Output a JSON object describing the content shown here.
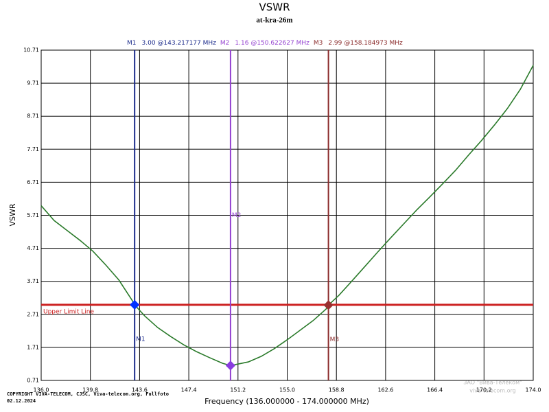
{
  "chart_data": {
    "type": "line",
    "title": "VSWR",
    "subtitle": "at-kra-26m",
    "x_label": "Frequency (136.000000 - 174.000000 MHz)",
    "y_label": "VSWR",
    "xlim": [
      136,
      174
    ],
    "ylim": [
      0.71,
      10.71
    ],
    "xticks": [
      {
        "value": 136,
        "label": "136.0"
      },
      139.8,
      143.6,
      147.4,
      151.2,
      {
        "value": 155,
        "label": "155.0"
      },
      158.8,
      162.6,
      166.4,
      170.2,
      {
        "value": 174,
        "label": "174.0"
      }
    ],
    "yticks": [
      0.71,
      1.71,
      2.71,
      3.71,
      4.71,
      5.71,
      6.71,
      7.71,
      8.71,
      9.71,
      10.71
    ],
    "grid": true,
    "x": [
      136,
      137,
      138,
      139,
      140,
      141,
      142,
      143,
      143.217177,
      144,
      145,
      146,
      147,
      148,
      149,
      150,
      150.622627,
      151,
      152,
      153,
      154,
      155,
      156,
      157,
      158,
      158.184973,
      159,
      160,
      161,
      162,
      163,
      164,
      165,
      166,
      167,
      168,
      169,
      170,
      171,
      172,
      173,
      174
    ],
    "series": [
      {
        "color": "#2a7a2a",
        "values": [
          6.0,
          5.55,
          5.25,
          4.95,
          4.62,
          4.2,
          3.75,
          3.15,
          3.0,
          2.66,
          2.31,
          2.04,
          1.79,
          1.58,
          1.4,
          1.23,
          1.16,
          1.19,
          1.27,
          1.44,
          1.67,
          1.94,
          2.23,
          2.52,
          2.87,
          2.99,
          3.29,
          3.72,
          4.16,
          4.6,
          5.03,
          5.45,
          5.87,
          6.26,
          6.66,
          7.07,
          7.53,
          7.97,
          8.44,
          8.94,
          9.52,
          10.25
        ]
      }
    ],
    "limit": {
      "value": 3.0,
      "label": "Upper Limit Line",
      "color": "#cc2020"
    },
    "markers": [
      {
        "name": "M1",
        "x": 143.217177,
        "y": 3.0,
        "label": "3.00 @143.217177 MHz",
        "color": "#1a2a8a",
        "dot_color": "#0033ff"
      },
      {
        "name": "M2",
        "x": 150.622627,
        "y": 1.16,
        "label": "1.16 @150.622627 MHz",
        "color": "#9340d0",
        "dot_color": "#8a3de0"
      },
      {
        "name": "M3",
        "x": 158.184973,
        "y": 2.99,
        "label": "2.99 @158.184973 MHz",
        "color": "#8a2a2a",
        "dot_color": "#9a3030"
      }
    ],
    "copyright": [
      "COPYRIGHT VIVA-TELECOM, CJSC, Viva-telecom.org, Fullfoto",
      "02.12.2024"
    ],
    "watermark": [
      "ЗАО \"Вива-Телеком\"",
      "viva-telecom.org"
    ]
  }
}
